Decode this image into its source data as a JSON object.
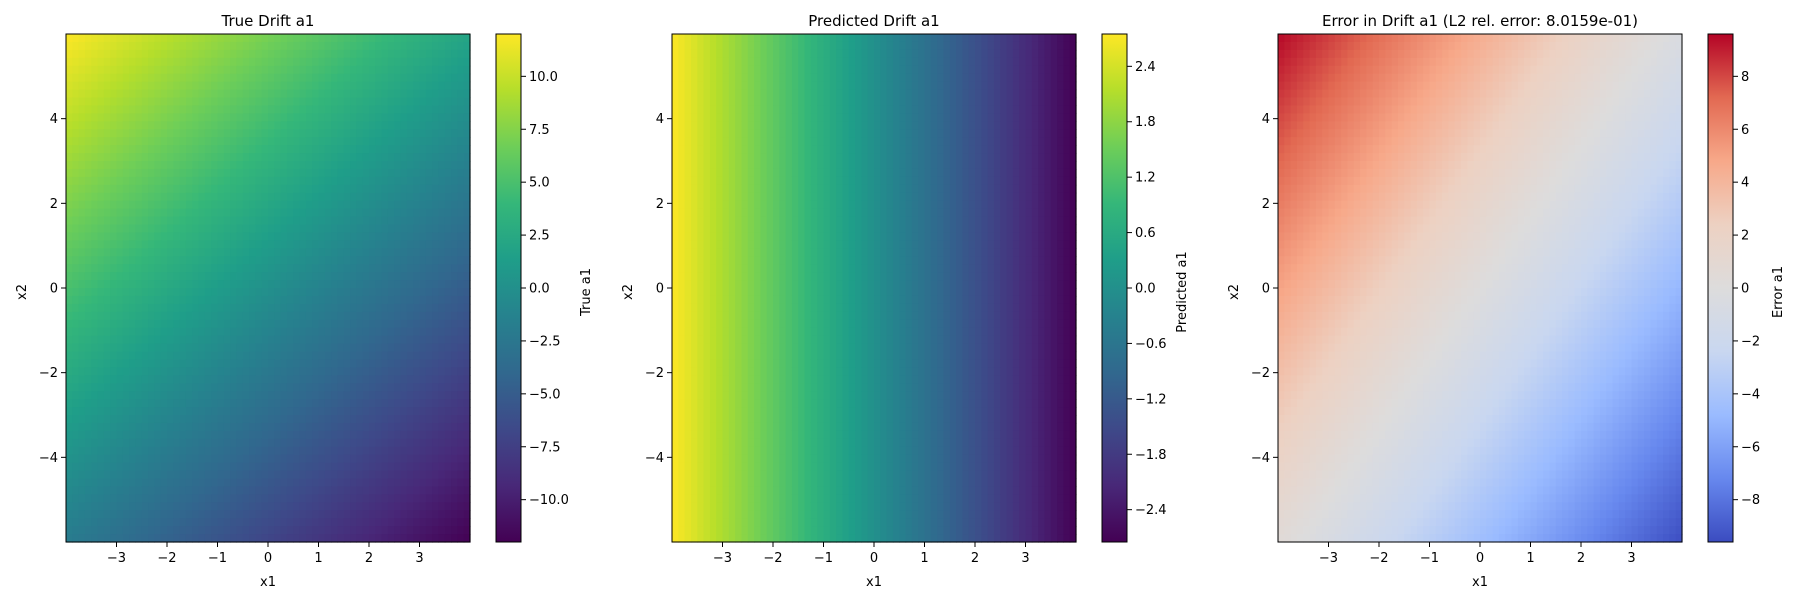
{
  "chart_data": [
    {
      "type": "heatmap",
      "title": "True Drift a1",
      "xlabel": "x1",
      "ylabel": "x2",
      "xlim": [
        -4,
        4
      ],
      "ylim": [
        -6,
        6
      ],
      "x_ticks": [
        -3,
        -2,
        -1,
        0,
        1,
        2,
        3
      ],
      "y_ticks": [
        -4,
        -2,
        0,
        2,
        4
      ],
      "colormap": "viridis",
      "values_at_corners": {
        "top_left": 12,
        "top_right": 2,
        "bottom_left": -2,
        "bottom_right": -12
      },
      "colorbar": {
        "label": "True a1",
        "range": [
          -12,
          12
        ],
        "ticks": [
          -10.0,
          -7.5,
          -5.0,
          -2.5,
          0.0,
          2.5,
          5.0,
          7.5,
          10.0
        ],
        "tick_labels": [
          "−10.0",
          "−7.5",
          "−5.0",
          "−2.5",
          "0.0",
          "2.5",
          "5.0",
          "7.5",
          "10.0"
        ]
      }
    },
    {
      "type": "heatmap",
      "title": "Predicted Drift a1",
      "xlabel": "x1",
      "ylabel": "x2",
      "xlim": [
        -4,
        4
      ],
      "ylim": [
        -6,
        6
      ],
      "x_ticks": [
        -3,
        -2,
        -1,
        0,
        1,
        2,
        3
      ],
      "y_ticks": [
        -4,
        -2,
        0,
        2,
        4
      ],
      "colormap": "viridis",
      "values_at_corners": {
        "top_left": 2.75,
        "top_right": -2.75,
        "bottom_left": 2.75,
        "bottom_right": -2.75
      },
      "colorbar": {
        "label": "Predicted a1",
        "range": [
          -2.75,
          2.75
        ],
        "ticks": [
          -2.4,
          -1.8,
          -1.2,
          -0.6,
          0.0,
          0.6,
          1.2,
          1.8,
          2.4
        ],
        "tick_labels": [
          "−2.4",
          "−1.8",
          "−1.2",
          "−0.6",
          "0.0",
          "0.6",
          "1.2",
          "1.8",
          "2.4"
        ]
      }
    },
    {
      "type": "heatmap",
      "title": "Error in Drift a1 (L2 rel. error: 8.0159e-01)",
      "xlabel": "x1",
      "ylabel": "x2",
      "xlim": [
        -4,
        4
      ],
      "ylim": [
        -6,
        6
      ],
      "x_ticks": [
        -3,
        -2,
        -1,
        0,
        1,
        2,
        3
      ],
      "y_ticks": [
        -4,
        -2,
        0,
        2,
        4
      ],
      "colormap": "coolwarm",
      "values_at_corners": {
        "top_left": 9.5,
        "top_right": -0.5,
        "bottom_left": 0.5,
        "bottom_right": -9.5
      },
      "colorbar": {
        "label": "Error a1",
        "range": [
          -9.6,
          9.6
        ],
        "ticks": [
          -8,
          -6,
          -4,
          -2,
          0,
          2,
          4,
          6,
          8
        ],
        "tick_labels": [
          "−8",
          "−6",
          "−4",
          "−2",
          "0",
          "2",
          "4",
          "6",
          "8"
        ]
      }
    }
  ]
}
